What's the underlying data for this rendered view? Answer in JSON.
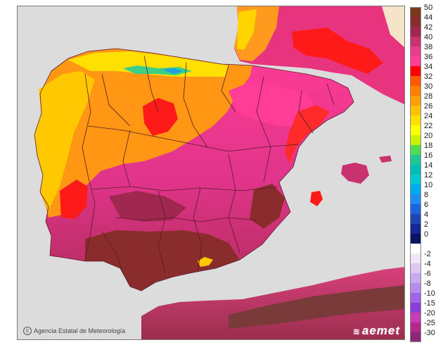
{
  "map": {
    "credit": "Agencia Estatal de Meteorología",
    "brand": "aemet",
    "icons": {
      "copyright": "copyright-icon",
      "logo": "aemet-logo-icon"
    },
    "colors": {
      "sea": "#dcdcdc",
      "coast_bg": "#f6e4c8",
      "border": "#5a1a2a",
      "temp_22": "#ffe400",
      "temp_28": "#ffb000",
      "temp_30": "#ff8000",
      "temp_34": "#ff1a1a",
      "temp_36": "#ff3c96",
      "temp_38": "#e83c8c",
      "temp_40": "#c8326e",
      "temp_42": "#a02850",
      "temp_44": "#8a2c2c"
    }
  },
  "legend": {
    "scale": [
      {
        "label": "50",
        "color": "#7a3a1e"
      },
      {
        "label": "44",
        "color": "#8a2c2c"
      },
      {
        "label": "42",
        "color": "#a02850"
      },
      {
        "label": "40",
        "color": "#c8326e"
      },
      {
        "label": "38",
        "color": "#e83c8c"
      },
      {
        "label": "36",
        "color": "#ff3c96"
      },
      {
        "label": "34",
        "color": "#ff0000"
      },
      {
        "label": "32",
        "color": "#ff5a00"
      },
      {
        "label": "30",
        "color": "#ff8000"
      },
      {
        "label": "28",
        "color": "#ffa000"
      },
      {
        "label": "26",
        "color": "#ffc000"
      },
      {
        "label": "24",
        "color": "#ffe000"
      },
      {
        "label": "22",
        "color": "#ffff00"
      },
      {
        "label": "20",
        "color": "#c8f000"
      },
      {
        "label": "18",
        "color": "#50dc50"
      },
      {
        "label": "16",
        "color": "#1ec896"
      },
      {
        "label": "14",
        "color": "#00beb4"
      },
      {
        "label": "12",
        "color": "#00c8d2"
      },
      {
        "label": "10",
        "color": "#00aaf0"
      },
      {
        "label": "8",
        "color": "#1e8cf0"
      },
      {
        "label": "6",
        "color": "#1e64dc"
      },
      {
        "label": "4",
        "color": "#1e46b4"
      },
      {
        "label": "2",
        "color": "#142896"
      },
      {
        "label": "0",
        "color": "#0a1464"
      },
      {
        "label": "",
        "color": "#ffffff"
      },
      {
        "label": "-2",
        "color": "#f0e6fa"
      },
      {
        "label": "-4",
        "color": "#dcc8f0"
      },
      {
        "label": "-6",
        "color": "#c8aaf0"
      },
      {
        "label": "-8",
        "color": "#b48ceb"
      },
      {
        "label": "-10",
        "color": "#a064e6"
      },
      {
        "label": "-15",
        "color": "#8c3cdc"
      },
      {
        "label": "-20",
        "color": "#c83cb4"
      },
      {
        "label": "-25",
        "color": "#b4288c"
      },
      {
        "label": "-30",
        "color": "#8c2878"
      }
    ]
  }
}
